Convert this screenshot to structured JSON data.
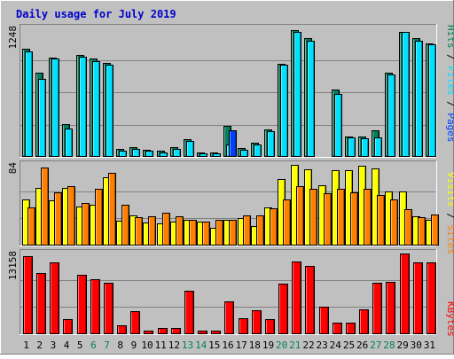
{
  "chart_data": {
    "type": "bar",
    "title": "Daily usage for July 2019",
    "categories": [
      "1",
      "2",
      "3",
      "4",
      "5",
      "6",
      "7",
      "8",
      "9",
      "10",
      "11",
      "12",
      "13",
      "14",
      "15",
      "16",
      "17",
      "18",
      "19",
      "20",
      "21",
      "22",
      "23",
      "24",
      "25",
      "26",
      "27",
      "28",
      "29",
      "30",
      "31"
    ],
    "weekend_days": [
      "6",
      "7",
      "13",
      "14",
      "20",
      "21",
      "27",
      "28"
    ],
    "panels": [
      {
        "ymax_label": "1248",
        "ymax": 1248,
        "legend": [
          "Pages",
          "Files",
          "Hits"
        ],
        "series": [
          {
            "name": "Hits",
            "color": "#00805c",
            "values": [
              1048,
              816,
              958,
              312,
              988,
              950,
              908,
              72,
              88,
              60,
              50,
              90,
              168,
              36,
              36,
              296,
              80,
              130,
              260,
              902,
              1232,
              1150,
              0,
              650,
              192,
              192,
              254,
              818,
              1216,
              1150,
              1104
            ]
          },
          {
            "name": "Files",
            "color": "#00e0ff",
            "values": [
              1020,
              752,
              950,
              270,
              970,
              930,
              890,
              54,
              72,
              48,
              36,
              66,
              146,
              22,
              26,
              110,
              60,
              110,
              246,
              890,
              1210,
              1130,
              0,
              610,
              184,
              176,
              184,
              800,
              1210,
              1130,
              1090
            ]
          },
          {
            "name": "Pages",
            "color": "#0040ff",
            "values": [
              0,
              0,
              0,
              0,
              0,
              0,
              0,
              0,
              0,
              0,
              0,
              0,
              0,
              0,
              0,
              250,
              0,
              0,
              0,
              0,
              0,
              0,
              0,
              0,
              0,
              0,
              0,
              0,
              0,
              0,
              0
            ]
          }
        ]
      },
      {
        "ymax_label": "84",
        "ymax": 84,
        "legend": [
          "Sites",
          "Visits"
        ],
        "series": [
          {
            "name": "Visits",
            "color": "#ffff00",
            "values": [
              48,
              60,
              47,
              60,
              40,
              42,
              71,
              25,
              31,
              23,
              22,
              24,
              26,
              24,
              18,
              26,
              28,
              20,
              39,
              69,
              84,
              79,
              63,
              78,
              78,
              83,
              80,
              56,
              56,
              30,
              26
            ]
          },
          {
            "name": "Sites",
            "color": "#ff8000",
            "values": [
              39,
              81,
              55,
              62,
              44,
              59,
              76,
              42,
              29,
              30,
              34,
              30,
              26,
              24,
              26,
              26,
              31,
              31,
              38,
              48,
              62,
              59,
              54,
              59,
              55,
              59,
              52,
              48,
              37,
              29,
              32
            ]
          }
        ]
      },
      {
        "ymax_label": "13158",
        "ymax": 13158,
        "legend": [
          "KBytes"
        ],
        "series": [
          {
            "name": "KBytes",
            "color": "#ff0000",
            "values": [
              12700,
              9900,
              11700,
              2400,
              9700,
              8900,
              8400,
              1300,
              3600,
              500,
              900,
              900,
              7000,
              400,
              400,
              5200,
              2500,
              3800,
              2400,
              8200,
              11800,
              11100,
              4400,
              1700,
              1700,
              4000,
              8300,
              8500,
              13100,
              11700,
              11700
            ]
          }
        ]
      }
    ]
  }
}
